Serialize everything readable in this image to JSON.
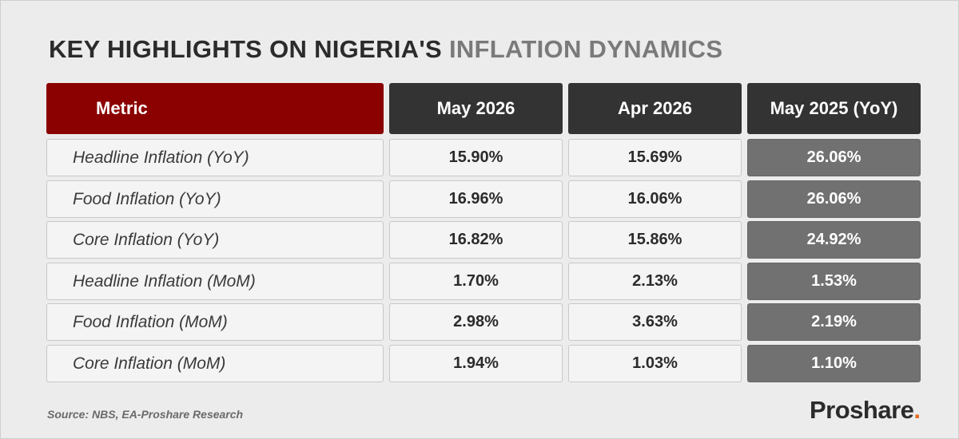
{
  "title": {
    "part1": "KEY HIGHLIGHTS ON NIGERIA'S",
    "part2": "INFLATION DYNAMICS"
  },
  "chart_data": {
    "type": "table",
    "columns": [
      "Metric",
      "May 2026",
      "Apr 2026",
      "May 2025 (YoY)"
    ],
    "rows": [
      [
        "Headline Inflation (YoY)",
        "15.90%",
        "15.69%",
        "26.06%"
      ],
      [
        "Food Inflation (YoY)",
        "16.96%",
        "16.06%",
        "26.06%"
      ],
      [
        "Core Inflation (YoY)",
        "16.82%",
        "15.86%",
        "24.92%"
      ],
      [
        "Headline Inflation (MoM)",
        "1.70%",
        "2.13%",
        "1.53%"
      ],
      [
        "Food Inflation (MoM)",
        "2.98%",
        "3.63%",
        "2.19%"
      ],
      [
        "Core Inflation (MoM)",
        "1.94%",
        "1.03%",
        "1.10%"
      ]
    ]
  },
  "source": "Source: NBS, EA-Proshare Research",
  "logo": {
    "text": "Proshare",
    "dot": "."
  },
  "colors": {
    "metric_header": "#8b0000",
    "header_dark": "#333333",
    "yoy_column": "#717171",
    "logo_dot": "#e36a1f",
    "background": "#ececec"
  }
}
